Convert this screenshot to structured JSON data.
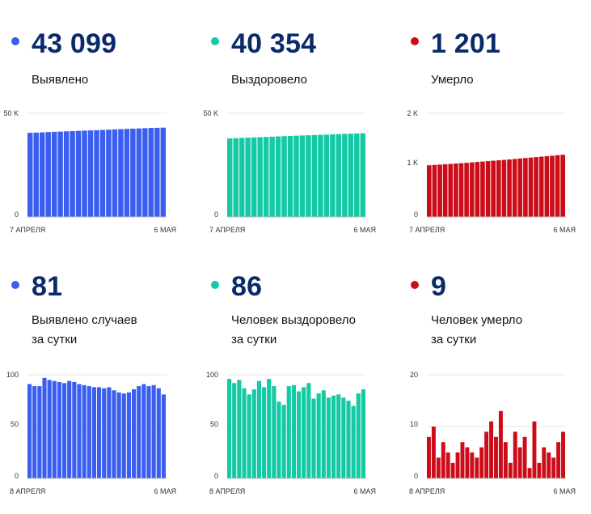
{
  "colors": {
    "blue": "#3a5ef0",
    "green": "#14c9a4",
    "red": "#cc0d19",
    "number": "#0a2a6b"
  },
  "panels": [
    {
      "id": "detected-total",
      "color": "#3a5ef0",
      "value": "43 099",
      "label_lines": [
        "Выявлено"
      ],
      "chart_data": {
        "type": "bar",
        "x_start_label": "7 АПРЕЛЯ",
        "x_end_label": "6 МАЯ",
        "y_ticks": [
          "0",
          "50 K"
        ],
        "ylim": [
          0,
          50000
        ],
        "values": [
          40600,
          40700,
          40820,
          40940,
          41060,
          41170,
          41290,
          41410,
          41530,
          41650,
          41760,
          41880,
          42000,
          42120,
          42230,
          42350,
          42470,
          42590,
          42710,
          42820,
          42940,
          43020,
          43099
        ]
      }
    },
    {
      "id": "recovered-total",
      "color": "#14c9a4",
      "value": "40 354",
      "label_lines": [
        "Выздоровело"
      ],
      "chart_data": {
        "type": "bar",
        "x_start_label": "7 АПРЕЛЯ",
        "x_end_label": "6 МАЯ",
        "y_ticks": [
          "0",
          "50 K"
        ],
        "ylim": [
          0,
          50000
        ],
        "values": [
          37900,
          38020,
          38140,
          38260,
          38380,
          38500,
          38620,
          38740,
          38860,
          38980,
          39090,
          39200,
          39310,
          39420,
          39530,
          39640,
          39750,
          39860,
          39970,
          40080,
          40190,
          40270,
          40354
        ]
      }
    },
    {
      "id": "deaths-total",
      "color": "#cc0d19",
      "value": "1 201",
      "label_lines": [
        "Умерло"
      ],
      "chart_data": {
        "type": "bar",
        "x_start_label": "7 АПРЕЛЯ",
        "x_end_label": "6 МАЯ",
        "y_ticks": [
          "0",
          "1 K",
          "2 K"
        ],
        "ylim": [
          0,
          2000
        ],
        "values": [
          996,
          1003,
          1010,
          1017,
          1024,
          1031,
          1038,
          1045,
          1053,
          1061,
          1069,
          1077,
          1085,
          1093,
          1101,
          1110,
          1119,
          1128,
          1137,
          1146,
          1155,
          1164,
          1173,
          1182,
          1192,
          1201
        ]
      }
    },
    {
      "id": "detected-daily",
      "color": "#3a5ef0",
      "value": "81",
      "label_lines": [
        "Выявлено случаев",
        "за сутки"
      ],
      "chart_data": {
        "type": "bar",
        "x_start_label": "8 АПРЕЛЯ",
        "x_end_label": "6 МАЯ",
        "y_ticks": [
          "0",
          "50",
          "100"
        ],
        "ylim": [
          0,
          100
        ],
        "values": [
          91,
          89,
          89,
          97,
          95,
          94,
          93,
          92,
          94,
          93,
          91,
          90,
          89,
          88,
          88,
          87,
          88,
          85,
          83,
          82,
          83,
          86,
          89,
          91,
          89,
          90,
          87,
          81
        ]
      }
    },
    {
      "id": "recovered-daily",
      "color": "#14c9a4",
      "value": "86",
      "label_lines": [
        "Человек выздоровело",
        "за сутки"
      ],
      "chart_data": {
        "type": "bar",
        "x_start_label": "8 АПРЕЛЯ",
        "x_end_label": "6 МАЯ",
        "y_ticks": [
          "0",
          "50",
          "100"
        ],
        "ylim": [
          0,
          100
        ],
        "values": [
          96,
          92,
          95,
          87,
          81,
          86,
          94,
          88,
          96,
          89,
          74,
          71,
          89,
          90,
          84,
          88,
          92,
          77,
          82,
          85,
          78,
          80,
          81,
          78,
          75,
          70,
          82,
          86
        ]
      }
    },
    {
      "id": "deaths-daily",
      "color": "#cc0d19",
      "value": "9",
      "label_lines": [
        "Человек умерло",
        "за сутки"
      ],
      "chart_data": {
        "type": "bar",
        "x_start_label": "8 АПРЕЛЯ",
        "x_end_label": "6 МАЯ",
        "y_ticks": [
          "0",
          "10",
          "20"
        ],
        "ylim": [
          0,
          20
        ],
        "values": [
          8,
          10,
          4,
          7,
          5,
          3,
          5,
          7,
          6,
          5,
          4,
          6,
          9,
          11,
          8,
          13,
          7,
          3,
          9,
          6,
          8,
          2,
          11,
          3,
          6,
          5,
          4,
          7,
          9
        ]
      }
    }
  ]
}
